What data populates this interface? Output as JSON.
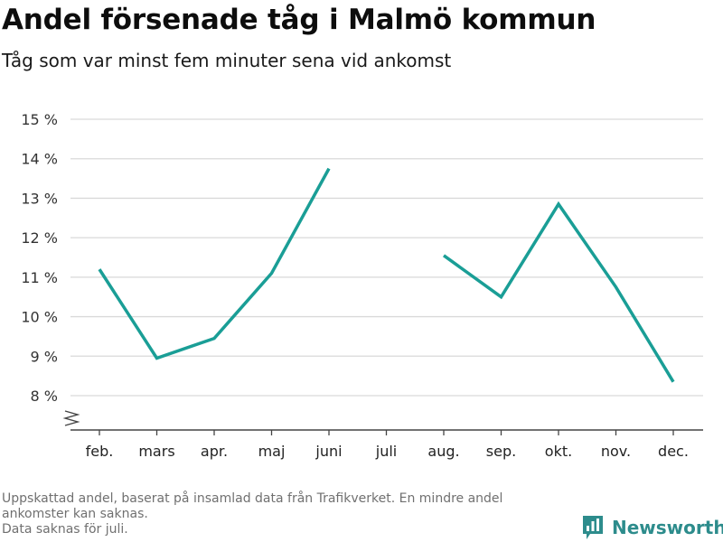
{
  "title": "Andel försenade tåg i Malmö kommun",
  "subtitle": "Tåg som var minst fem minuter sena vid ankomst",
  "footnote": {
    "line1": "Uppskattad andel, baserat på insamlad data från Trafikverket. En mindre andel",
    "line2": "ankomster kan saknas.",
    "line3": "Data saknas för juli."
  },
  "brand": {
    "name": "Newsworthy",
    "icon": "newsworthy-logo-icon",
    "color": "#2d8c8c"
  },
  "colors": {
    "line": "#1a9e96",
    "grid": "#d9d9d9",
    "axis": "#444444"
  },
  "chart_data": {
    "type": "line",
    "categories": [
      "feb.",
      "mars",
      "apr.",
      "maj",
      "juni",
      "juli",
      "aug.",
      "sep.",
      "okt.",
      "nov.",
      "dec."
    ],
    "series": [
      {
        "values": [
          11.2,
          8.95,
          9.45,
          11.1,
          13.75,
          null,
          11.55,
          10.5,
          12.85,
          10.75,
          8.35
        ]
      }
    ],
    "yticks": [
      8,
      9,
      10,
      11,
      12,
      13,
      14,
      15
    ],
    "ytick_labels": [
      "8 %",
      "9 %",
      "10 %",
      "11 %",
      "12 %",
      "13 %",
      "14 %",
      "15 %"
    ],
    "ylim": [
      8,
      15
    ],
    "y_axis_break": true,
    "grid": true,
    "xlabel": "",
    "ylabel": ""
  }
}
